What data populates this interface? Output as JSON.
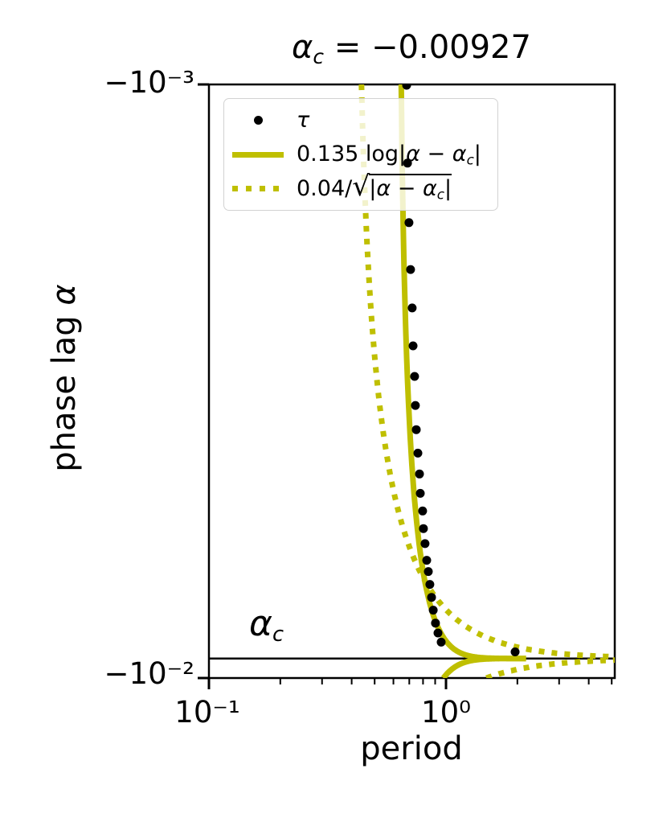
{
  "title": {
    "a": "α",
    "sub": "c",
    "rest": " = −0.00927"
  },
  "axes": {
    "xlabel": "period",
    "ylabel": {
      "pre": "phase lag ",
      "symbol": "α"
    },
    "xticks": [
      {
        "label": "10⁻¹",
        "value": 0.1
      },
      {
        "label": "10⁰",
        "value": 1.0
      }
    ],
    "yticks": [
      {
        "label": "−10⁻³",
        "value": -0.001
      },
      {
        "label": "−10⁻²",
        "value": -0.01
      }
    ],
    "x_minor_ticks": [
      0.2,
      0.3,
      0.4,
      0.5,
      0.6,
      0.7,
      0.8,
      0.9,
      2,
      3,
      4,
      5
    ]
  },
  "annotation": {
    "a": "α",
    "sub": "c"
  },
  "legend": {
    "entries": [
      {
        "label": "τ"
      },
      {
        "p1": "0.135 log|",
        "a1": "α",
        "p2": " − ",
        "a2": "α",
        "sub": "c",
        "p3": "|"
      },
      {
        "p1": "0.04/",
        "sqrt": "√",
        "r1": "|",
        "a1": "α",
        "r2": " − ",
        "a2": "α",
        "sub": "c",
        "r3": "|"
      }
    ]
  },
  "colors": {
    "curve": "#bfbf00",
    "scatter": "#000000",
    "axis": "#000000",
    "legend_border": "#d2d2d2"
  },
  "chart_data": {
    "type": "scatter",
    "title": "α_c = −0.00927",
    "xlabel": "period",
    "ylabel": "phase lag α",
    "x_scale": "log",
    "y_scale": "log of negative value (−10⁻³ top to −10⁻² bottom)",
    "xlim": [
      0.1,
      5.2
    ],
    "ylim": [
      -0.01,
      -0.001
    ],
    "grid": false,
    "legend_position": "upper left",
    "alpha_c": -0.00927,
    "series": [
      {
        "name": "τ",
        "type": "scatter",
        "marker": "point",
        "color": "#000000",
        "points": [
          [
            0.682,
            -0.001003
          ],
          [
            0.688,
            -0.001357
          ],
          [
            0.698,
            -0.001709
          ],
          [
            0.709,
            -0.00205
          ],
          [
            0.72,
            -0.00238
          ],
          [
            0.726,
            -0.002757
          ],
          [
            0.737,
            -0.003104
          ],
          [
            0.743,
            -0.003474
          ],
          [
            0.749,
            -0.003816
          ],
          [
            0.761,
            -0.00418
          ],
          [
            0.773,
            -0.004532
          ],
          [
            0.779,
            -0.004885
          ],
          [
            0.797,
            -0.00523
          ],
          [
            0.803,
            -0.005601
          ],
          [
            0.816,
            -0.005937
          ],
          [
            0.829,
            -0.006334
          ],
          [
            0.842,
            -0.006616
          ],
          [
            0.855,
            -0.006955
          ],
          [
            0.869,
            -0.007312
          ],
          [
            0.883,
            -0.007686
          ],
          [
            0.903,
            -0.00808
          ],
          [
            0.925,
            -0.008397
          ],
          [
            0.954,
            -0.0087
          ],
          [
            1.956,
            -0.009036
          ]
        ]
      },
      {
        "name": "0.135 log|α − α_c|",
        "type": "line",
        "style": "solid",
        "color": "#bfbf00",
        "coefficient": 0.135,
        "formula": "period = −0.135 · ln|α − α_c|, branches above and below α_c"
      },
      {
        "name": "0.04/√|α − α_c|",
        "type": "line",
        "style": "dotted",
        "color": "#bfbf00",
        "coefficient": 0.04,
        "formula": "period = 0.04 / sqrt(|α − α_c|), branches above and below α_c"
      }
    ],
    "annotations": [
      {
        "text": "α_c",
        "type": "horizontal-line-with-label",
        "y": -0.00927
      }
    ]
  }
}
